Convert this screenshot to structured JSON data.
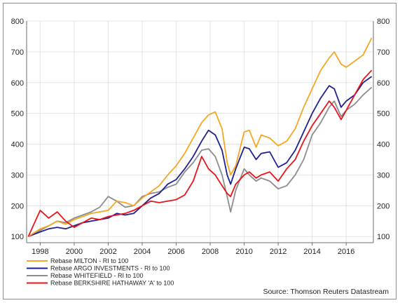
{
  "chart_data": {
    "type": "line",
    "xlim": [
      1997.2,
      2017.6
    ],
    "ylim": [
      80,
      800
    ],
    "y_ticks": [
      100,
      200,
      300,
      400,
      500,
      600,
      700,
      800
    ],
    "x_ticks": [
      1998,
      2000,
      2002,
      2004,
      2006,
      2008,
      2010,
      2012,
      2014,
      2016
    ],
    "y_axes": "both",
    "grid": true,
    "legend_placement": "bottom-left",
    "source": "Source: Thomson Reuters Datastream",
    "series": [
      {
        "name": "Rebase MILTON - RI to 100",
        "color": "#f5a623",
        "x": [
          1997.3,
          1998.0,
          1998.5,
          1999.0,
          1999.5,
          2000.0,
          2000.5,
          2001.0,
          2001.5,
          2002.0,
          2002.5,
          2003.0,
          2003.5,
          2004.0,
          2004.5,
          2005.0,
          2005.5,
          2006.0,
          2006.5,
          2007.0,
          2007.5,
          2007.9,
          2008.3,
          2008.7,
          2009.0,
          2009.2,
          2009.5,
          2010.0,
          2010.3,
          2010.7,
          2011.0,
          2011.5,
          2012.0,
          2012.5,
          2013.0,
          2013.5,
          2014.0,
          2014.5,
          2015.0,
          2015.3,
          2015.7,
          2016.0,
          2016.5,
          2017.0,
          2017.5
        ],
        "values": [
          100,
          125,
          135,
          150,
          140,
          155,
          165,
          175,
          180,
          185,
          215,
          210,
          200,
          225,
          245,
          265,
          300,
          330,
          370,
          420,
          470,
          495,
          505,
          450,
          340,
          300,
          330,
          440,
          445,
          390,
          430,
          420,
          395,
          410,
          450,
          520,
          580,
          640,
          680,
          700,
          660,
          650,
          670,
          690,
          745
        ]
      },
      {
        "name": "Rebase ARGO INVESTMENTS - RI to 100",
        "color": "#1f1f8f",
        "x": [
          1997.3,
          1998.0,
          1998.5,
          1999.0,
          1999.5,
          2000.0,
          2000.5,
          2001.0,
          2001.5,
          2002.0,
          2002.5,
          2003.0,
          2003.5,
          2004.0,
          2004.5,
          2005.0,
          2005.5,
          2006.0,
          2006.5,
          2007.0,
          2007.5,
          2007.9,
          2008.3,
          2008.7,
          2009.0,
          2009.2,
          2009.5,
          2010.0,
          2010.3,
          2010.7,
          2011.0,
          2011.5,
          2012.0,
          2012.5,
          2013.0,
          2013.5,
          2014.0,
          2014.5,
          2015.0,
          2015.3,
          2015.7,
          2016.0,
          2016.5,
          2017.0,
          2017.5
        ],
        "values": [
          100,
          115,
          125,
          130,
          125,
          135,
          145,
          150,
          155,
          160,
          175,
          170,
          175,
          200,
          225,
          240,
          270,
          285,
          320,
          360,
          410,
          445,
          430,
          380,
          300,
          270,
          320,
          390,
          385,
          350,
          370,
          375,
          325,
          340,
          380,
          440,
          500,
          550,
          590,
          580,
          520,
          540,
          560,
          600,
          620
        ]
      },
      {
        "name": "Rebase WHITEFIELD - RI to 100",
        "color": "#8c8c8c",
        "x": [
          1997.3,
          1998.0,
          1998.5,
          1999.0,
          1999.5,
          2000.0,
          2000.5,
          2001.0,
          2001.5,
          2002.0,
          2002.5,
          2003.0,
          2003.5,
          2004.0,
          2004.5,
          2005.0,
          2005.5,
          2006.0,
          2006.5,
          2007.0,
          2007.5,
          2007.9,
          2008.3,
          2008.7,
          2009.0,
          2009.2,
          2009.5,
          2010.0,
          2010.3,
          2010.7,
          2011.0,
          2011.5,
          2012.0,
          2012.5,
          2013.0,
          2013.5,
          2014.0,
          2014.5,
          2015.0,
          2015.3,
          2015.7,
          2016.0,
          2016.5,
          2017.0,
          2017.5
        ],
        "values": [
          100,
          120,
          135,
          150,
          145,
          160,
          170,
          180,
          195,
          230,
          215,
          195,
          200,
          230,
          240,
          245,
          260,
          270,
          310,
          340,
          380,
          385,
          360,
          300,
          230,
          180,
          250,
          320,
          300,
          280,
          290,
          280,
          255,
          265,
          300,
          350,
          430,
          470,
          520,
          540,
          490,
          510,
          530,
          560,
          585
        ]
      },
      {
        "name": "Rebase BERKSHIRE HATHAWAY 'A' to 100",
        "color": "#e8141c",
        "x": [
          1997.3,
          1998.0,
          1998.5,
          1999.0,
          1999.5,
          2000.0,
          2000.5,
          2001.0,
          2001.5,
          2002.0,
          2002.5,
          2003.0,
          2003.5,
          2004.0,
          2004.5,
          2005.0,
          2005.5,
          2006.0,
          2006.5,
          2007.0,
          2007.5,
          2007.9,
          2008.3,
          2008.7,
          2009.0,
          2009.2,
          2009.5,
          2010.0,
          2010.3,
          2010.7,
          2011.0,
          2011.5,
          2012.0,
          2012.5,
          2013.0,
          2013.5,
          2014.0,
          2014.5,
          2015.0,
          2015.3,
          2015.7,
          2016.0,
          2016.5,
          2017.0,
          2017.5
        ],
        "values": [
          100,
          185,
          160,
          180,
          150,
          130,
          145,
          160,
          155,
          165,
          170,
          175,
          185,
          200,
          215,
          210,
          215,
          220,
          235,
          280,
          360,
          320,
          300,
          265,
          240,
          230,
          270,
          300,
          310,
          290,
          300,
          310,
          280,
          320,
          350,
          410,
          460,
          500,
          540,
          520,
          480,
          510,
          560,
          610,
          640
        ]
      }
    ]
  }
}
